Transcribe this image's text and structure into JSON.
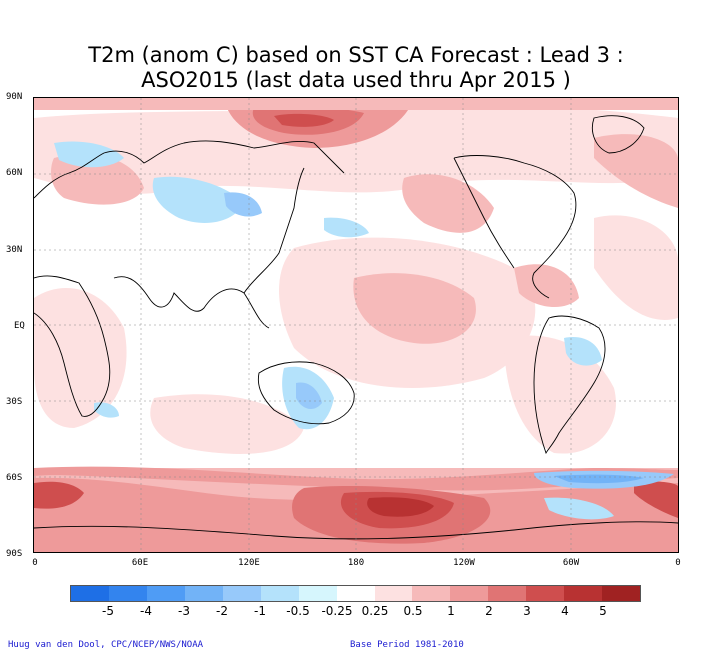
{
  "title_line1": "T2m (anom C) based on SST CA Forecast : Lead 3 :",
  "title_line2": "ASO2015 (last data used thru Apr 2015 )",
  "lat_labels": [
    "90N",
    "60N",
    "30N",
    "EQ",
    "30S",
    "60S",
    "90S"
  ],
  "lon_labels": [
    "0",
    "60E",
    "120E",
    "180",
    "120W",
    "60W",
    "0"
  ],
  "legend": {
    "labels": [
      "-5",
      "-4",
      "-3",
      "-2",
      "-1",
      "-0.5",
      "-0.25",
      "0.25",
      "0.5",
      "1",
      "2",
      "3",
      "4",
      "5"
    ],
    "colors": [
      "#1e6fe6",
      "#3384ee",
      "#4f9cf5",
      "#72b3f7",
      "#97c9fa",
      "#b4e2fb",
      "#d6f6fd",
      "#ffffff",
      "#fde1e1",
      "#f6baba",
      "#ee9a9a",
      "#e07474",
      "#cf4e4e",
      "#b83232",
      "#a02222"
    ]
  },
  "credits": {
    "author": "Huug van den Dool, CPC/NCEP/NWS/NOAA",
    "base_period": "Base Period 1981-2010"
  }
}
